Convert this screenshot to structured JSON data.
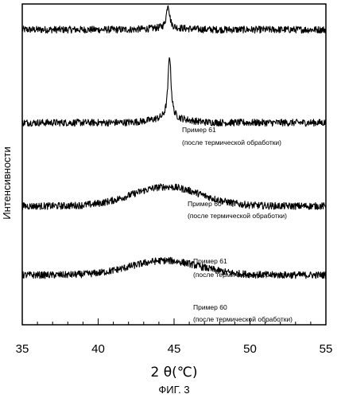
{
  "chart_data": {
    "type": "line",
    "title": "",
    "xlabel": "2 θ(℃)",
    "ylabel": "Интенсивности",
    "caption": "ФИГ. 3",
    "xlim": [
      35,
      55
    ],
    "x_ticks": [
      "35",
      "40",
      "45",
      "50",
      "55"
    ],
    "y_ticks_labeled": false,
    "grid": false,
    "series": [
      {
        "label_line1": "Пример 61",
        "label_line2": "(после термической обработки)",
        "kind": "sharp_peak",
        "peak_x": 44.6,
        "peak_height": 1.0,
        "baseline": 0.92
      },
      {
        "label_line1": "Пример 60",
        "label_line2": "(после термической обработки)",
        "kind": "sharp_peak",
        "peak_x": 44.7,
        "peak_height": 0.84,
        "baseline": 0.63
      },
      {
        "label_line1": "Пример 61",
        "label_line2": "(после термической обработки)",
        "kind": "broad_hump",
        "peak_x": 44.5,
        "peak_height": 0.43,
        "baseline": 0.37
      },
      {
        "label_line1": "Пример 60",
        "label_line2": "(после термической обработки)",
        "kind": "broad_hump",
        "peak_x": 44.4,
        "peak_height": 0.2,
        "baseline": 0.155
      }
    ]
  }
}
